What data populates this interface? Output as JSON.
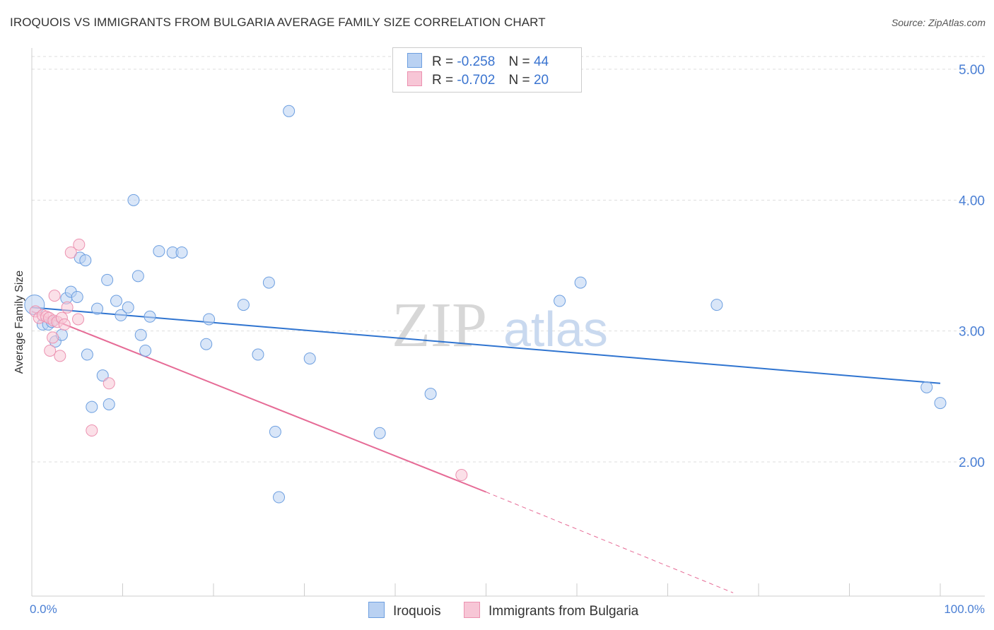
{
  "title": "IROQUOIS VS IMMIGRANTS FROM BULGARIA AVERAGE FAMILY SIZE CORRELATION CHART",
  "source": "Source: ZipAtlas.com",
  "watermark": {
    "zip": "ZIP",
    "atlas": "atlas"
  },
  "colors": {
    "iroquois_fill": "#b9d1f2",
    "iroquois_stroke": "#6d9fe0",
    "iroquois_line": "#2f74d0",
    "bulgaria_fill": "#f7c6d6",
    "bulgaria_stroke": "#ec91b0",
    "bulgaria_line": "#e66b96",
    "grid": "#dddddd",
    "axis_text": "#4a7fd4"
  },
  "legend": {
    "rows": [
      {
        "r_label": "R =",
        "r_value": "-0.258",
        "n_label": "N =",
        "n_value": "44"
      },
      {
        "r_label": "R =",
        "r_value": "-0.702",
        "n_label": "N =",
        "n_value": "20"
      }
    ]
  },
  "bottom_legend": {
    "iroquois": "Iroquois",
    "bulgaria": "Immigrants from Bulgaria"
  },
  "chart_data": {
    "type": "scatter",
    "title": "IROQUOIS VS IMMIGRANTS FROM BULGARIA AVERAGE FAMILY SIZE CORRELATION CHART",
    "xlabel": "",
    "ylabel": "Average Family Size",
    "xlim": [
      0,
      100
    ],
    "ylim": [
      1.0,
      5.1
    ],
    "x_tick_labels": [
      "0.0%",
      "100.0%"
    ],
    "y_ticks": [
      2.0,
      3.0,
      4.0,
      5.0
    ],
    "y_tick_labels": [
      "2.00",
      "3.00",
      "4.00",
      "5.00"
    ],
    "grid": true,
    "series": [
      {
        "name": "Iroquois",
        "points": [
          [
            0.3,
            3.2
          ],
          [
            1.2,
            3.05
          ],
          [
            1.8,
            3.05
          ],
          [
            2.2,
            3.07
          ],
          [
            2.6,
            2.92
          ],
          [
            3.3,
            2.97
          ],
          [
            3.8,
            3.25
          ],
          [
            4.3,
            3.3
          ],
          [
            5.0,
            3.26
          ],
          [
            5.3,
            3.56
          ],
          [
            5.9,
            3.54
          ],
          [
            6.1,
            2.82
          ],
          [
            6.6,
            2.42
          ],
          [
            7.2,
            3.17
          ],
          [
            7.8,
            2.66
          ],
          [
            8.3,
            3.39
          ],
          [
            8.5,
            2.44
          ],
          [
            9.3,
            3.23
          ],
          [
            9.8,
            3.12
          ],
          [
            10.6,
            3.18
          ],
          [
            11.2,
            4.0
          ],
          [
            11.7,
            3.42
          ],
          [
            12.0,
            2.97
          ],
          [
            12.5,
            2.85
          ],
          [
            13.0,
            3.11
          ],
          [
            14.0,
            3.61
          ],
          [
            15.5,
            3.6
          ],
          [
            16.5,
            3.6
          ],
          [
            19.2,
            2.9
          ],
          [
            19.5,
            3.09
          ],
          [
            23.3,
            3.2
          ],
          [
            24.9,
            2.82
          ],
          [
            26.1,
            3.37
          ],
          [
            26.8,
            2.23
          ],
          [
            27.2,
            1.73
          ],
          [
            28.3,
            4.68
          ],
          [
            30.6,
            2.79
          ],
          [
            38.3,
            2.22
          ],
          [
            43.9,
            2.52
          ],
          [
            58.1,
            3.23
          ],
          [
            60.4,
            3.37
          ],
          [
            75.4,
            3.2
          ],
          [
            98.5,
            2.57
          ],
          [
            100.0,
            2.45
          ]
        ],
        "trend": {
          "x": [
            0,
            100
          ],
          "y": [
            3.18,
            2.6
          ]
        }
      },
      {
        "name": "Immigrants from Bulgaria",
        "points": [
          [
            0.4,
            3.15
          ],
          [
            0.8,
            3.1
          ],
          [
            1.2,
            3.12
          ],
          [
            1.6,
            3.11
          ],
          [
            1.9,
            3.1
          ],
          [
            2.0,
            2.85
          ],
          [
            2.3,
            2.95
          ],
          [
            2.4,
            3.08
          ],
          [
            2.5,
            3.27
          ],
          [
            2.8,
            3.07
          ],
          [
            3.1,
            2.81
          ],
          [
            3.3,
            3.1
          ],
          [
            3.6,
            3.05
          ],
          [
            3.9,
            3.18
          ],
          [
            4.3,
            3.6
          ],
          [
            5.1,
            3.09
          ],
          [
            5.2,
            3.66
          ],
          [
            8.5,
            2.6
          ],
          [
            6.6,
            2.24
          ],
          [
            47.3,
            1.9
          ]
        ],
        "trend": {
          "x": [
            0,
            50
          ],
          "y": [
            3.15,
            1.77
          ]
        },
        "trend_dashed_extension": {
          "x": [
            50,
            77.2
          ],
          "y": [
            1.77,
            1.0
          ]
        }
      }
    ]
  }
}
